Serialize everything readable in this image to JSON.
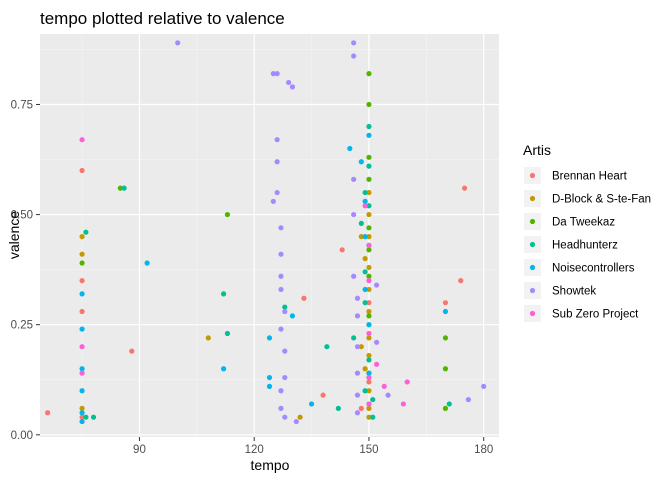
{
  "chart_data": {
    "type": "scatter",
    "title": "tempo plotted relative to valence",
    "xlabel": "tempo",
    "ylabel": "valence",
    "xlim": [
      64,
      184
    ],
    "ylim": [
      -0.005,
      0.91
    ],
    "x_ticks": [
      90,
      120,
      150,
      180
    ],
    "x_tick_labels": [
      "90",
      "120",
      "150",
      "180"
    ],
    "y_ticks": [
      0.0,
      0.25,
      0.5,
      0.75
    ],
    "y_tick_labels": [
      "0.00",
      "0.25",
      "0.50",
      "0.75"
    ],
    "grid": true,
    "panel_background": "#ebebeb",
    "legend": {
      "title": "Artis",
      "position": "right"
    },
    "series": [
      {
        "name": "Brennan Heart",
        "color": "#F8766D",
        "points": [
          [
            66,
            0.05
          ],
          [
            75,
            0.6
          ],
          [
            75,
            0.35
          ],
          [
            75,
            0.28
          ],
          [
            75,
            0.04
          ],
          [
            88,
            0.19
          ],
          [
            133,
            0.31
          ],
          [
            138,
            0.09
          ],
          [
            143,
            0.42
          ],
          [
            148,
            0.06
          ],
          [
            150,
            0.3
          ],
          [
            150,
            0.12
          ],
          [
            170,
            0.3
          ],
          [
            174,
            0.35
          ],
          [
            175,
            0.56
          ]
        ]
      },
      {
        "name": "D-Block & S-te-Fan",
        "color": "#C49A00",
        "points": [
          [
            75,
            0.45
          ],
          [
            75,
            0.41
          ],
          [
            75,
            0.06
          ],
          [
            108,
            0.22
          ],
          [
            132,
            0.04
          ],
          [
            148,
            0.45
          ],
          [
            148,
            0.2
          ],
          [
            149,
            0.4
          ],
          [
            149,
            0.15
          ],
          [
            150,
            0.55
          ],
          [
            150,
            0.5
          ],
          [
            150,
            0.45
          ],
          [
            150,
            0.38
          ],
          [
            150,
            0.33
          ],
          [
            150,
            0.28
          ],
          [
            150,
            0.22
          ],
          [
            150,
            0.18
          ],
          [
            150,
            0.14
          ],
          [
            150,
            0.1
          ],
          [
            150,
            0.06
          ],
          [
            150,
            0.04
          ]
        ]
      },
      {
        "name": "Da Tweekaz",
        "color": "#53B400",
        "points": [
          [
            75,
            0.39
          ],
          [
            85,
            0.56
          ],
          [
            113,
            0.5
          ],
          [
            150,
            0.82
          ],
          [
            150,
            0.75
          ],
          [
            150,
            0.63
          ],
          [
            150,
            0.58
          ],
          [
            150,
            0.47
          ],
          [
            150,
            0.42
          ],
          [
            150,
            0.36
          ],
          [
            150,
            0.27
          ],
          [
            150,
            0.13
          ],
          [
            170,
            0.22
          ],
          [
            170,
            0.15
          ],
          [
            170,
            0.06
          ]
        ]
      },
      {
        "name": "Headhunterz",
        "color": "#00C094",
        "points": [
          [
            76,
            0.46
          ],
          [
            76,
            0.04
          ],
          [
            78,
            0.04
          ],
          [
            86,
            0.56
          ],
          [
            112,
            0.32
          ],
          [
            113,
            0.23
          ],
          [
            128,
            0.29
          ],
          [
            139,
            0.2
          ],
          [
            142,
            0.06
          ],
          [
            146,
            0.22
          ],
          [
            148,
            0.48
          ],
          [
            149,
            0.55
          ],
          [
            149,
            0.37
          ],
          [
            149,
            0.3
          ],
          [
            149,
            0.1
          ],
          [
            150,
            0.7
          ],
          [
            150,
            0.61
          ],
          [
            150,
            0.52
          ],
          [
            150,
            0.43
          ],
          [
            150,
            0.25
          ],
          [
            150,
            0.17
          ],
          [
            151,
            0.08
          ],
          [
            151,
            0.04
          ],
          [
            171,
            0.07
          ]
        ]
      },
      {
        "name": "Noisecontrollers",
        "color": "#00B6EB",
        "points": [
          [
            75,
            0.32
          ],
          [
            75,
            0.24
          ],
          [
            75,
            0.15
          ],
          [
            75,
            0.1
          ],
          [
            75,
            0.05
          ],
          [
            75,
            0.03
          ],
          [
            92,
            0.39
          ],
          [
            112,
            0.15
          ],
          [
            124,
            0.22
          ],
          [
            124,
            0.13
          ],
          [
            124,
            0.11
          ],
          [
            130,
            0.27
          ],
          [
            135,
            0.07
          ],
          [
            145,
            0.65
          ],
          [
            148,
            0.62
          ],
          [
            149,
            0.53
          ],
          [
            149,
            0.45
          ],
          [
            149,
            0.33
          ],
          [
            150,
            0.68
          ],
          [
            150,
            0.25
          ],
          [
            150,
            0.14
          ],
          [
            150,
            0.07
          ],
          [
            170,
            0.28
          ]
        ]
      },
      {
        "name": "Showtek",
        "color": "#A58AFF",
        "points": [
          [
            100,
            0.89
          ],
          [
            125,
            0.82
          ],
          [
            126,
            0.82
          ],
          [
            129,
            0.8
          ],
          [
            130,
            0.79
          ],
          [
            126,
            0.67
          ],
          [
            126,
            0.62
          ],
          [
            126,
            0.55
          ],
          [
            125,
            0.53
          ],
          [
            127,
            0.47
          ],
          [
            127,
            0.41
          ],
          [
            127,
            0.36
          ],
          [
            127,
            0.33
          ],
          [
            128,
            0.28
          ],
          [
            127,
            0.24
          ],
          [
            128,
            0.19
          ],
          [
            128,
            0.13
          ],
          [
            127,
            0.1
          ],
          [
            127,
            0.06
          ],
          [
            128,
            0.04
          ],
          [
            131,
            0.03
          ],
          [
            146,
            0.89
          ],
          [
            146,
            0.86
          ],
          [
            146,
            0.58
          ],
          [
            146,
            0.5
          ],
          [
            146,
            0.36
          ],
          [
            147,
            0.31
          ],
          [
            147,
            0.27
          ],
          [
            147,
            0.2
          ],
          [
            147,
            0.14
          ],
          [
            147,
            0.09
          ],
          [
            147,
            0.05
          ],
          [
            152,
            0.34
          ],
          [
            152,
            0.21
          ],
          [
            155,
            0.09
          ],
          [
            176,
            0.08
          ],
          [
            180,
            0.11
          ]
        ]
      },
      {
        "name": "Sub Zero Project",
        "color": "#FB61D7",
        "points": [
          [
            75,
            0.67
          ],
          [
            75,
            0.2
          ],
          [
            75,
            0.14
          ],
          [
            149,
            0.52
          ],
          [
            150,
            0.43
          ],
          [
            150,
            0.35
          ],
          [
            150,
            0.23
          ],
          [
            150,
            0.13
          ],
          [
            150,
            0.07
          ],
          [
            152,
            0.16
          ],
          [
            154,
            0.11
          ],
          [
            160,
            0.12
          ],
          [
            159,
            0.07
          ]
        ]
      }
    ]
  }
}
